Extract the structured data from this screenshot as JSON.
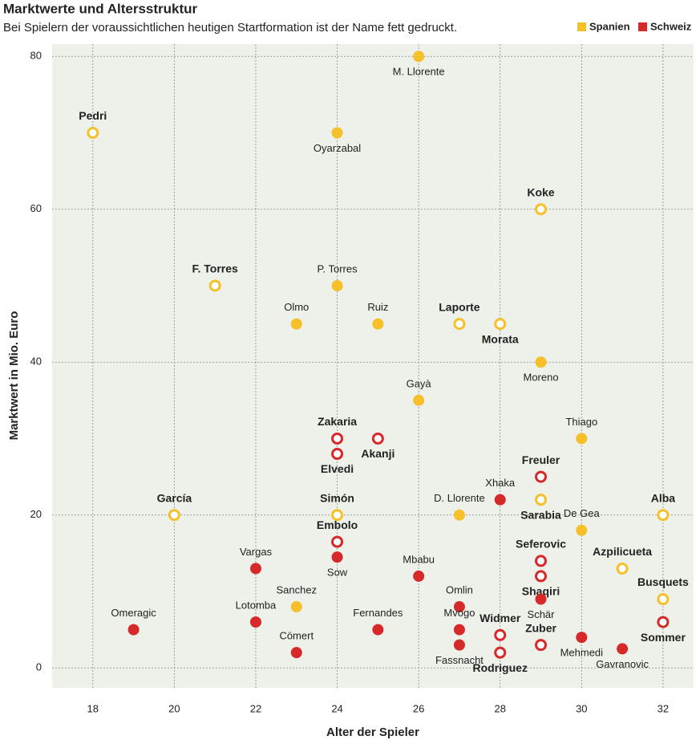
{
  "chart_data": {
    "type": "scatter",
    "title": "Marktwerte und Altersstruktur",
    "subtitle": "Bei Spielern der voraussichtlichen heutigen Startformation ist der Name fett gedruckt.",
    "x_label": "Alter der Spieler",
    "y_label": "Marktwert in Mio. Euro",
    "xlim": [
      17,
      32.75
    ],
    "ylim": [
      -2.6,
      81.6
    ],
    "xticks": [
      18,
      20,
      22,
      24,
      26,
      28,
      30,
      32
    ],
    "yticks": [
      0,
      20,
      40,
      60,
      80
    ],
    "grid": true,
    "legend": "top-right",
    "series": [
      {
        "name": "Spanien",
        "color": "#f5c02a",
        "labels": [
          "M. Llorente",
          "Pedri",
          "Oyarzabal",
          "Koke",
          "F. Torres",
          "P. Torres",
          "Olmo",
          "Ruiz",
          "Laporte",
          "Morata",
          "Moreno",
          "Gayà",
          "Thiago",
          "García",
          "Simón",
          "D. Llorente",
          "Sarabia",
          "De Gea",
          "Alba",
          "Azpilicueta",
          "Sanchez",
          "Busquets"
        ],
        "x": [
          26,
          18,
          24,
          29,
          21,
          24,
          23,
          25,
          27,
          28,
          29,
          26,
          30,
          20,
          24,
          27,
          29,
          30,
          32,
          31,
          23,
          32
        ],
        "values": [
          80,
          70,
          70,
          60,
          50,
          50,
          45,
          45,
          45,
          45,
          40,
          35,
          30,
          20,
          20,
          20,
          22,
          18,
          20,
          13,
          8,
          9
        ],
        "starting": [
          false,
          true,
          false,
          true,
          true,
          false,
          false,
          false,
          true,
          true,
          false,
          false,
          false,
          true,
          true,
          false,
          true,
          false,
          true,
          true,
          false,
          true
        ]
      },
      {
        "name": "Schweiz",
        "color": "#d62a2a",
        "labels": [
          "Zakaria",
          "Akanji",
          "Elvedi",
          "Freuler",
          "Xhaka",
          "Embolo",
          "Sow",
          "Vargas",
          "Mbabu",
          "Seferovic",
          "Shaqiri",
          "Schär",
          "Omlin",
          "Mvogo",
          "Fassnacht",
          "Widmer",
          "Rodriguez",
          "Zuber",
          "Mehmedi",
          "Gavranovic",
          "Sommer",
          "Omeragic",
          "Lotomba",
          "Cömert",
          "Fernandes"
        ],
        "x": [
          24,
          25,
          24,
          29,
          28,
          24,
          24,
          22,
          26,
          29,
          29,
          29,
          27,
          27,
          27,
          28,
          28,
          29,
          30,
          31,
          32,
          19,
          22,
          23,
          25
        ],
        "values": [
          30,
          30,
          28,
          25,
          22,
          16.5,
          14.5,
          13,
          12,
          14,
          12,
          9,
          8,
          5,
          3,
          4.3,
          2,
          3,
          4,
          2.5,
          6,
          5,
          6,
          2,
          5
        ],
        "starting": [
          true,
          true,
          true,
          true,
          false,
          true,
          false,
          false,
          false,
          true,
          true,
          false,
          false,
          false,
          false,
          true,
          true,
          true,
          false,
          false,
          true,
          false,
          false,
          false,
          false
        ]
      }
    ]
  }
}
